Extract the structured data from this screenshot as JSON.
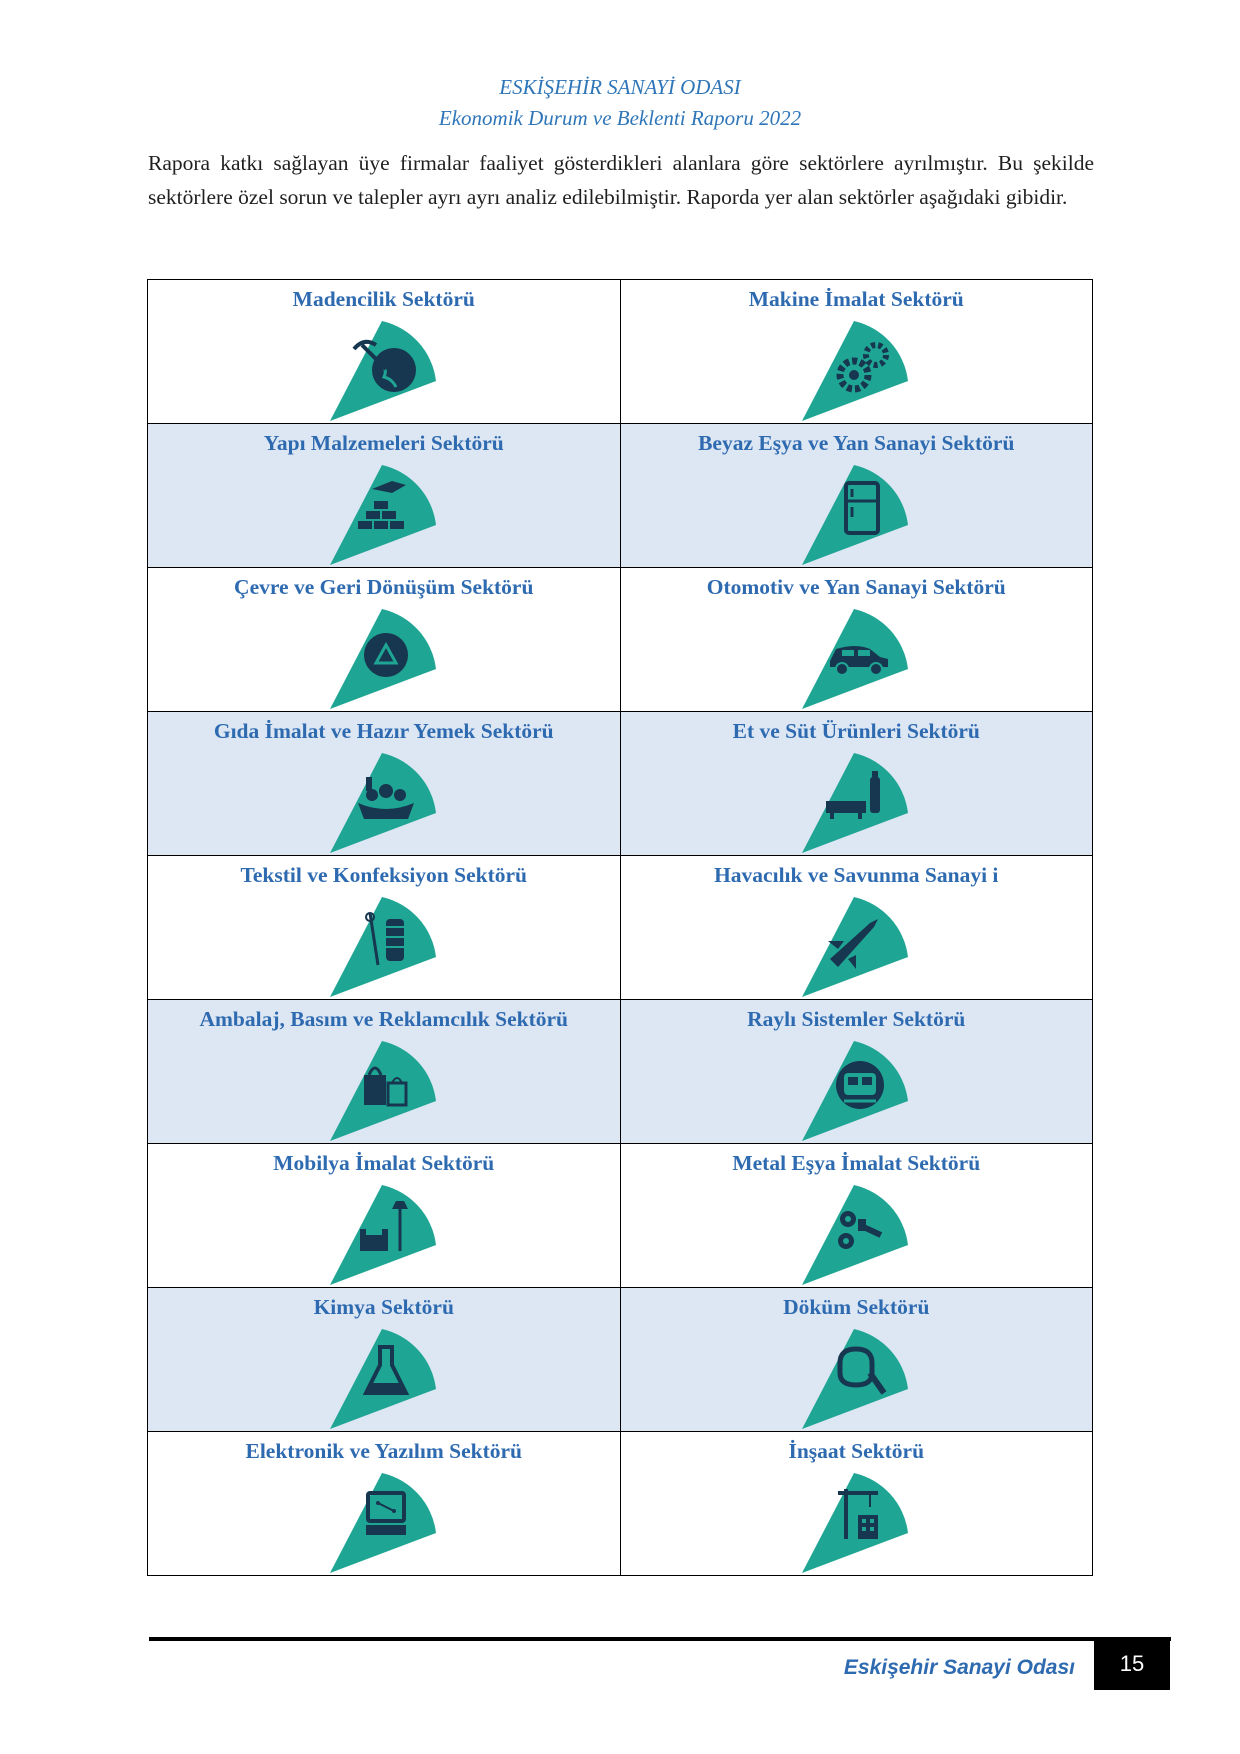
{
  "header": {
    "line1": "ESKİŞEHİR SANAYİ ODASI",
    "line2": "Ekonomik Durum ve Beklenti Raporu 2022"
  },
  "intro": "Rapora katkı sağlayan üye firmalar faaliyet gösterdikleri alanlara göre sektörlere ayrılmıştır. Bu şekilde sektörlere özel sorun ve talepler ayrı ayrı analiz edilebilmiştir. Raporda yer alan sektörler aşağıdaki gibidir.",
  "colors": {
    "accent_blue": "#2e6ab0",
    "teal": "#1fa594",
    "row_shade": "#dde7f4",
    "icon": "#17364f"
  },
  "sectors": [
    {
      "label": "Madencilik Sektörü",
      "icon": "pickaxe-globe-icon"
    },
    {
      "label": "Makine İmalat Sektörü",
      "icon": "gears-icon"
    },
    {
      "label": "Yapı Malzemeleri Sektörü",
      "icon": "bricks-trowel-icon"
    },
    {
      "label": "Beyaz Eşya ve Yan Sanayi Sektörü",
      "icon": "refrigerator-icon"
    },
    {
      "label": "Çevre ve Geri Dönüşüm Sektörü",
      "icon": "recycle-icon"
    },
    {
      "label": "Otomotiv ve Yan Sanayi Sektörü",
      "icon": "car-icon"
    },
    {
      "label": "Gıda İmalat ve Hazır Yemek Sektörü",
      "icon": "food-basket-icon"
    },
    {
      "label": "Et ve Süt Ürünleri Sektörü",
      "icon": "cow-milk-icon"
    },
    {
      "label": "Tekstil ve Konfeksiyon Sektörü",
      "icon": "thread-needle-icon"
    },
    {
      "label": "Havacılık ve Savunma Sanayi i",
      "icon": "fighter-jet-icon"
    },
    {
      "label": "Ambalaj, Basım ve Reklamcılık Sektörü",
      "icon": "shopping-bags-icon"
    },
    {
      "label": "Raylı Sistemler Sektörü",
      "icon": "train-icon"
    },
    {
      "label": "Mobilya İmalat Sektörü",
      "icon": "armchair-lamp-icon"
    },
    {
      "label": "Metal Eşya İmalat Sektörü",
      "icon": "nuts-bolts-icon"
    },
    {
      "label": "Kimya Sektörü",
      "icon": "flask-icon"
    },
    {
      "label": "Döküm Sektörü",
      "icon": "ladle-icon"
    },
    {
      "label": "Elektronik ve Yazılım Sektörü",
      "icon": "computer-circuit-icon"
    },
    {
      "label": "İnşaat Sektörü",
      "icon": "crane-building-icon"
    }
  ],
  "footer": {
    "org": "Eskişehir Sanayi Odası",
    "page_number": "15"
  }
}
